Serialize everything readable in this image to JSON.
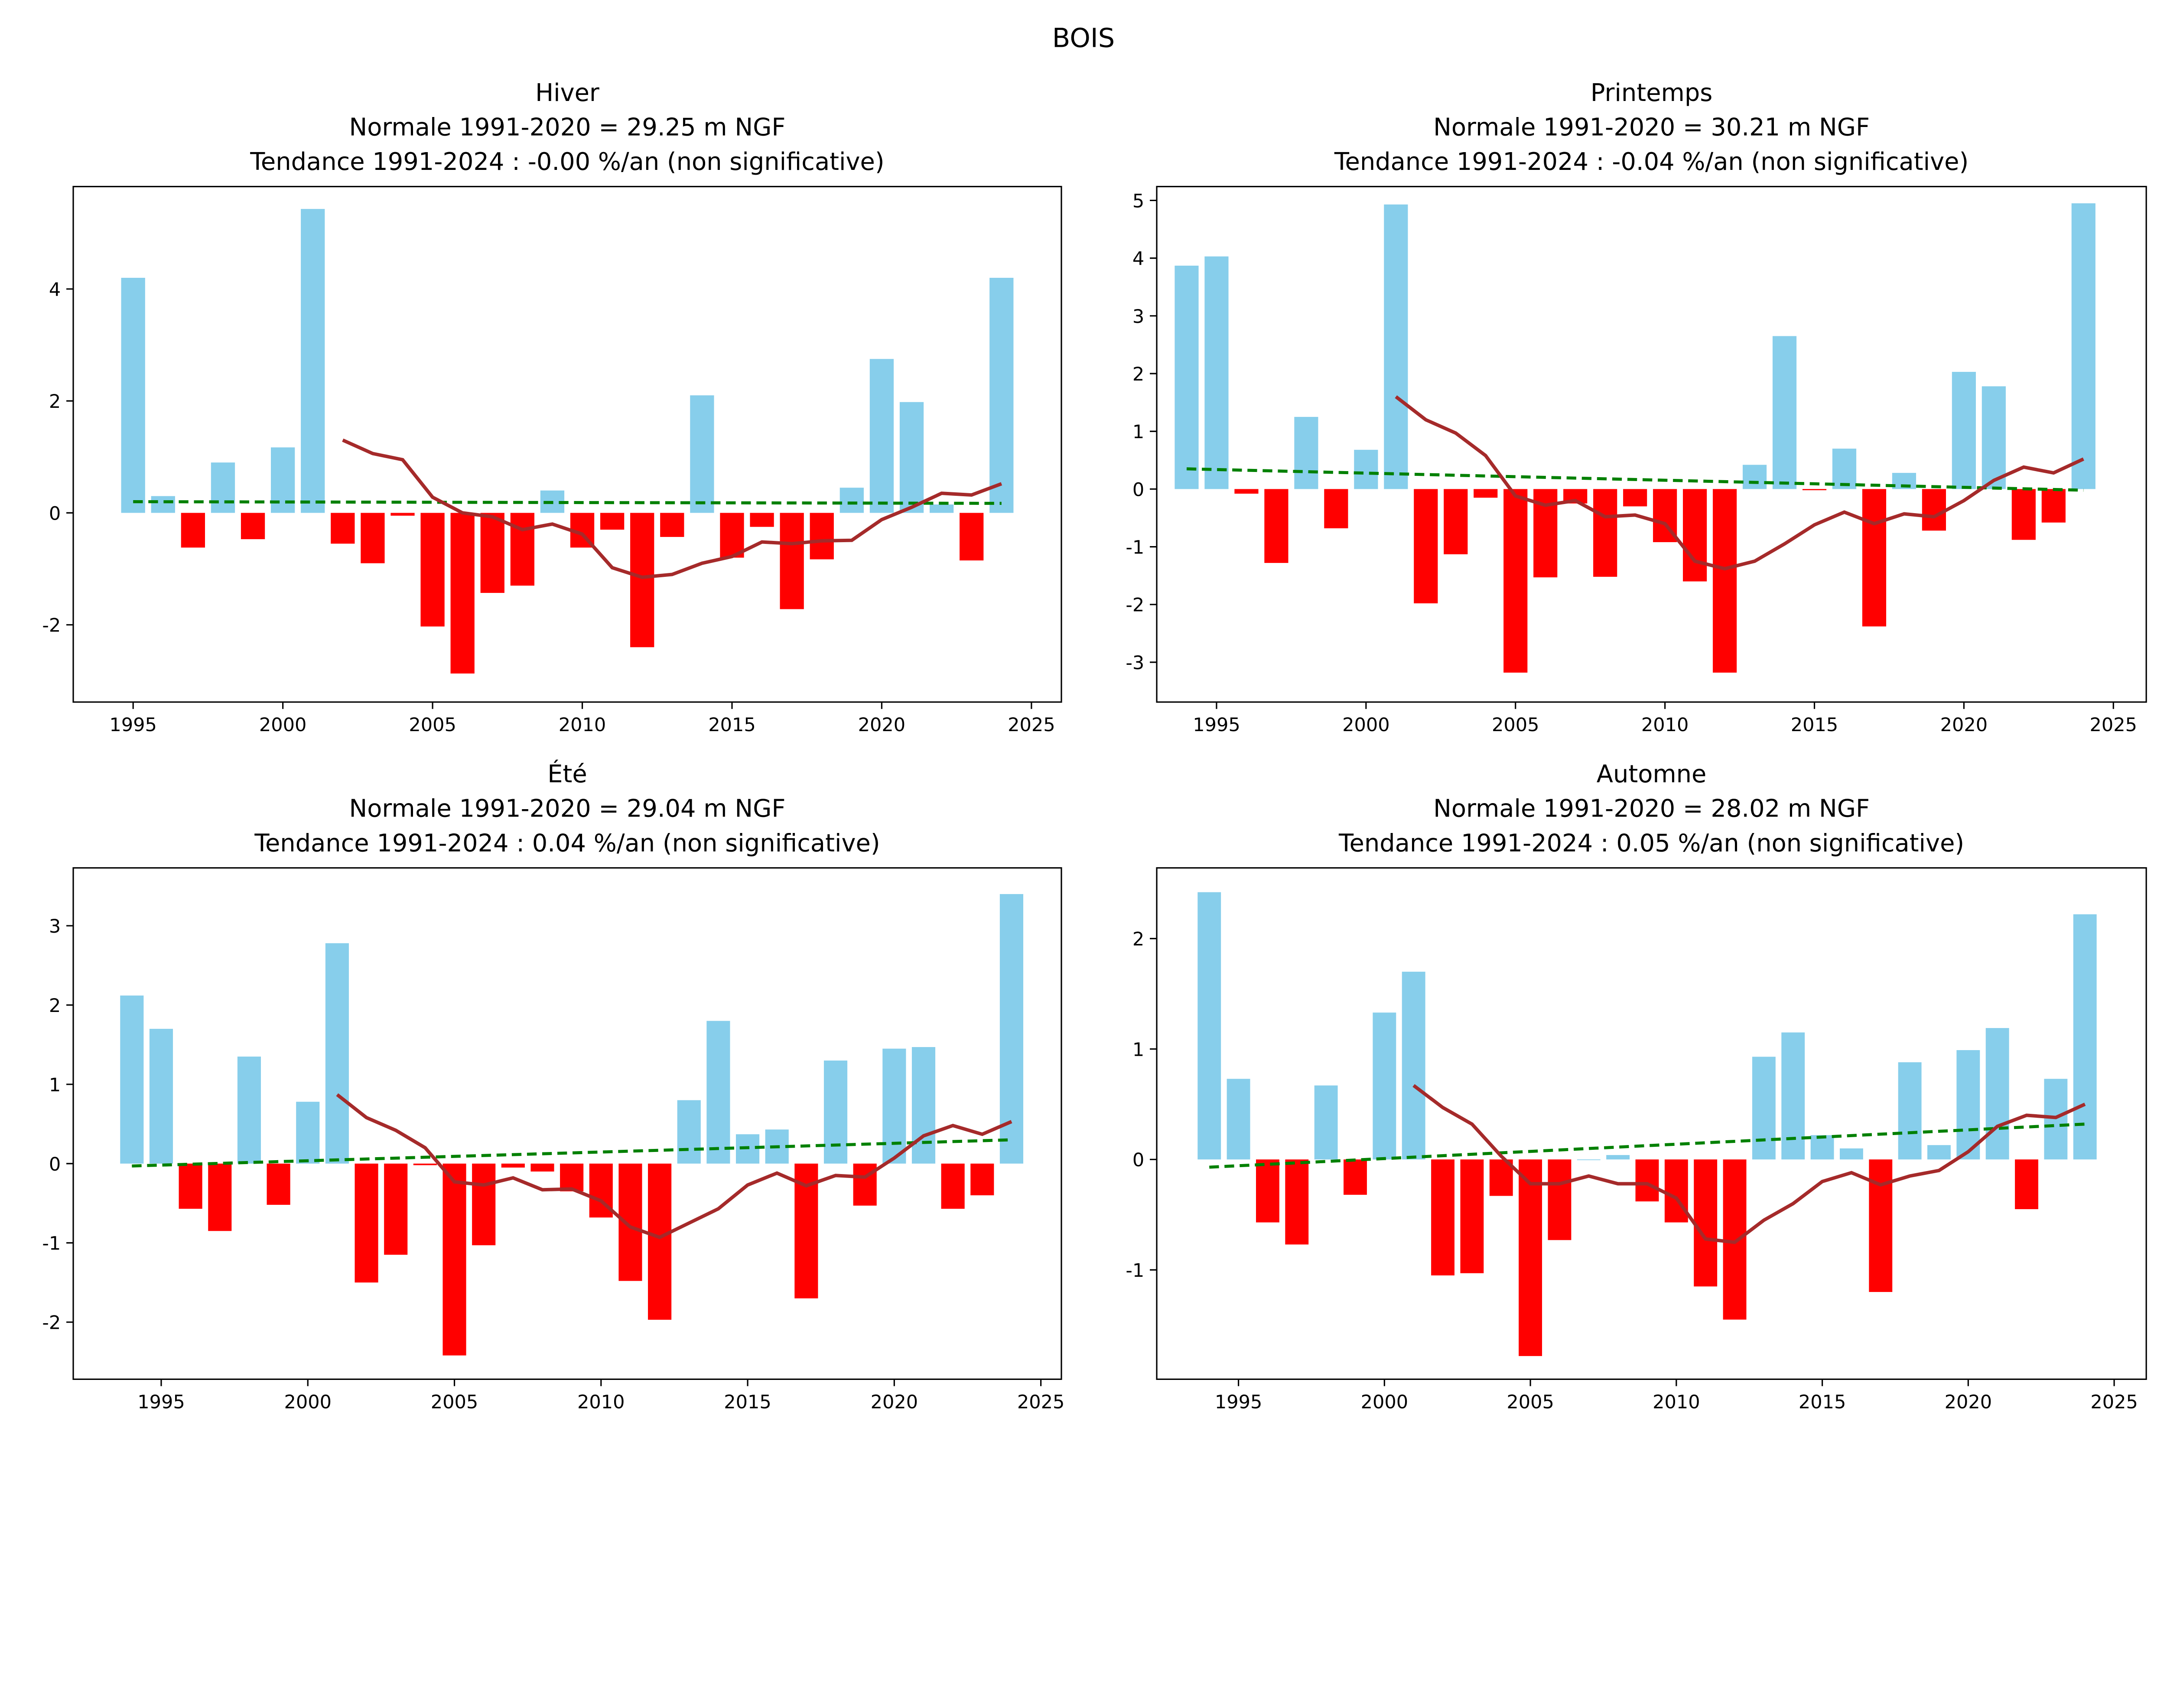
{
  "suptitle": "BOIS",
  "colors": {
    "positive": "#87CEEB",
    "negative": "#FF0000",
    "moving_average": "#A52A2A",
    "trend": "#008000"
  },
  "chart_data": [
    {
      "type": "bar",
      "title": [
        "Hiver",
        "Normale 1991-2020 = 29.25 m NGF",
        "Tendance 1991-2024 : -0.00 %/an (non significative)"
      ],
      "xlim": [
        1993,
        2026
      ],
      "ylim": [
        -3.38,
        5.83
      ],
      "xticks": [
        1995,
        2000,
        2005,
        2010,
        2015,
        2020,
        2025
      ],
      "yticks": [
        -2,
        0,
        2,
        4
      ],
      "x": [
        1995,
        1996,
        1997,
        1998,
        1999,
        2000,
        2001,
        2002,
        2003,
        2004,
        2005,
        2006,
        2007,
        2008,
        2009,
        2010,
        2011,
        2012,
        2013,
        2014,
        2015,
        2016,
        2017,
        2018,
        2019,
        2020,
        2021,
        2022,
        2023,
        2024
      ],
      "values": [
        4.2,
        0.3,
        -0.62,
        0.9,
        -0.47,
        1.17,
        5.43,
        -0.55,
        -0.9,
        -0.05,
        -2.03,
        -2.87,
        -1.43,
        -1.3,
        0.4,
        -0.62,
        -0.3,
        -2.4,
        -0.43,
        2.1,
        -0.8,
        -0.25,
        -1.72,
        -0.83,
        0.45,
        2.75,
        1.98,
        0.15,
        -0.85,
        4.2
      ],
      "moving_average": {
        "x_start": 2002,
        "values": [
          1.3,
          1.06,
          0.95,
          0.28,
          0.0,
          -0.07,
          -0.3,
          -0.2,
          -0.38,
          -0.98,
          -1.15,
          -1.1,
          -0.9,
          -0.78,
          -0.52,
          -0.55,
          -0.5,
          -0.49,
          -0.12,
          0.1,
          0.35,
          0.32,
          0.52
        ]
      },
      "trend": {
        "x": [
          1995,
          2024
        ],
        "y": [
          0.2,
          0.17
        ]
      }
    },
    {
      "type": "bar",
      "title": [
        "Printemps",
        "Normale 1991-2020 = 30.21 m NGF",
        "Tendance 1991-2024 : -0.04 %/an (non significative)"
      ],
      "xlim": [
        1993,
        2026.1
      ],
      "ylim": [
        -3.69,
        5.24
      ],
      "xticks": [
        1995,
        2000,
        2005,
        2010,
        2015,
        2020,
        2025
      ],
      "yticks": [
        -3,
        -2,
        -1,
        0,
        1,
        2,
        3,
        4,
        5
      ],
      "x": [
        1994,
        1995,
        1996,
        1997,
        1998,
        1999,
        2000,
        2001,
        2002,
        2003,
        2004,
        2005,
        2006,
        2007,
        2008,
        2009,
        2010,
        2011,
        2012,
        2013,
        2014,
        2015,
        2016,
        2017,
        2018,
        2019,
        2020,
        2021,
        2022,
        2023,
        2024
      ],
      "values": [
        3.87,
        4.03,
        -0.08,
        -1.28,
        1.25,
        -0.68,
        0.68,
        4.93,
        -1.98,
        -1.13,
        -0.15,
        -3.18,
        -1.53,
        -0.25,
        -1.52,
        -0.3,
        -0.92,
        -1.6,
        -3.18,
        0.42,
        2.65,
        -0.02,
        0.7,
        -2.38,
        0.28,
        -0.72,
        2.03,
        1.78,
        -0.88,
        -0.58,
        4.95
      ],
      "moving_average": {
        "x_start": 2001,
        "values": [
          1.6,
          1.2,
          0.97,
          0.58,
          -0.12,
          -0.28,
          -0.2,
          -0.48,
          -0.45,
          -0.6,
          -1.25,
          -1.38,
          -1.25,
          -0.95,
          -0.62,
          -0.4,
          -0.6,
          -0.43,
          -0.48,
          -0.2,
          0.15,
          0.38,
          0.28,
          0.52
        ]
      },
      "trend": {
        "x": [
          1994,
          2024
        ],
        "y": [
          0.35,
          -0.02
        ]
      }
    },
    {
      "type": "bar",
      "title": [
        "Été",
        "Normale 1991-2020 = 29.04 m NGF",
        "Tendance 1991-2024 : 0.04 %/an (non significative)"
      ],
      "xlim": [
        1992,
        2025.7
      ],
      "ylim": [
        -2.72,
        3.73
      ],
      "xticks": [
        1995,
        2000,
        2005,
        2010,
        2015,
        2020,
        2025
      ],
      "yticks": [
        -2,
        -1,
        0,
        1,
        2,
        3
      ],
      "x": [
        1994,
        1995,
        1996,
        1997,
        1998,
        1999,
        2000,
        2001,
        2002,
        2003,
        2004,
        2005,
        2006,
        2007,
        2008,
        2009,
        2010,
        2011,
        2012,
        2013,
        2014,
        2015,
        2016,
        2017,
        2018,
        2019,
        2020,
        2021,
        2022,
        2023,
        2024
      ],
      "values": [
        2.12,
        1.7,
        -0.57,
        -0.85,
        1.35,
        -0.52,
        0.78,
        2.78,
        -1.5,
        -1.15,
        -0.02,
        -2.42,
        -1.03,
        -0.05,
        -0.1,
        -0.35,
        -0.68,
        -1.48,
        -1.97,
        0.8,
        1.8,
        0.37,
        0.43,
        -1.7,
        1.3,
        -0.53,
        1.45,
        1.47,
        -0.57,
        -0.4,
        3.4
      ],
      "moving_average": {
        "x_start": 2001,
        "values": [
          0.87,
          0.58,
          0.42,
          0.2,
          -0.23,
          -0.27,
          -0.18,
          -0.33,
          -0.32,
          -0.47,
          -0.8,
          -0.93,
          -0.75,
          -0.57,
          -0.27,
          -0.12,
          -0.28,
          -0.15,
          -0.17,
          0.07,
          0.35,
          0.48,
          0.37,
          0.53
        ]
      },
      "trend": {
        "x": [
          1994,
          2024
        ],
        "y": [
          -0.03,
          0.3
        ]
      }
    },
    {
      "type": "bar",
      "title": [
        "Automne",
        "Normale 1991-2020 = 28.02 m NGF",
        "Tendance 1991-2024 : 0.05 %/an (non significative)"
      ],
      "xlim": [
        1992.2,
        2026.1
      ],
      "ylim": [
        -1.99,
        2.64
      ],
      "xticks": [
        1995,
        2000,
        2005,
        2010,
        2015,
        2020,
        2025
      ],
      "yticks": [
        -1,
        0,
        1,
        2
      ],
      "x": [
        1994,
        1995,
        1996,
        1997,
        1998,
        1999,
        2000,
        2001,
        2002,
        2003,
        2004,
        2005,
        2006,
        2007,
        2008,
        2009,
        2010,
        2011,
        2012,
        2013,
        2014,
        2015,
        2016,
        2017,
        2018,
        2019,
        2020,
        2021,
        2022,
        2023,
        2024
      ],
      "values": [
        2.42,
        0.73,
        -0.57,
        -0.77,
        0.67,
        -0.32,
        1.33,
        1.7,
        -1.05,
        -1.03,
        -0.33,
        -1.78,
        -0.73,
        0.0,
        0.04,
        -0.38,
        -0.57,
        -1.15,
        -1.45,
        0.93,
        1.15,
        0.22,
        0.1,
        -1.2,
        0.88,
        0.13,
        0.99,
        1.19,
        -0.45,
        0.73,
        2.22
      ],
      "moving_average": {
        "x_start": 2001,
        "values": [
          0.67,
          0.47,
          0.32,
          0.03,
          -0.22,
          -0.22,
          -0.15,
          -0.22,
          -0.22,
          -0.35,
          -0.72,
          -0.75,
          -0.55,
          -0.4,
          -0.2,
          -0.12,
          -0.23,
          -0.15,
          -0.1,
          0.07,
          0.3,
          0.4,
          0.38,
          0.5
        ]
      },
      "trend": {
        "x": [
          1994,
          2024
        ],
        "y": [
          -0.07,
          0.32
        ]
      }
    }
  ]
}
